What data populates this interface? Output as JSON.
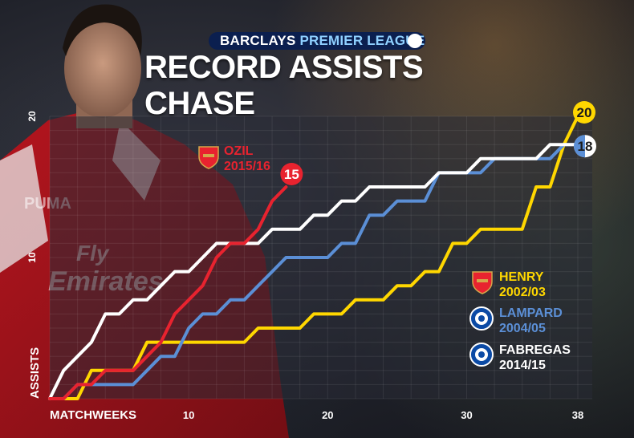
{
  "header": {
    "brand_part1": "BARCLAYS",
    "brand_part2": "PREMIER LEAGUE",
    "title": "RECORD ASSISTS CHASE"
  },
  "chart_data": {
    "type": "line",
    "title": "RECORD ASSISTS CHASE",
    "xlabel": "MATCHWEEKS",
    "ylabel": "ASSISTS",
    "xlim": [
      0,
      38
    ],
    "ylim": [
      0,
      20
    ],
    "x_ticks": [
      10,
      20,
      30,
      38
    ],
    "y_ticks": [
      10,
      20
    ],
    "grid": true,
    "series": [
      {
        "name": "OZIL",
        "season": "2015/16",
        "club": "arsenal",
        "color": "#e8232f",
        "end_label": "15",
        "points": [
          [
            0,
            0
          ],
          [
            1,
            0
          ],
          [
            2,
            1
          ],
          [
            3,
            1
          ],
          [
            4,
            2
          ],
          [
            5,
            2
          ],
          [
            6,
            2
          ],
          [
            7,
            3
          ],
          [
            8,
            4
          ],
          [
            9,
            6
          ],
          [
            10,
            7
          ],
          [
            11,
            8
          ],
          [
            12,
            10
          ],
          [
            13,
            11
          ],
          [
            14,
            11
          ],
          [
            15,
            12
          ],
          [
            16,
            14
          ],
          [
            17,
            15
          ]
        ]
      },
      {
        "name": "HENRY",
        "season": "2002/03",
        "club": "arsenal",
        "color": "#ffd700",
        "end_label": "20",
        "points": [
          [
            0,
            0
          ],
          [
            1,
            0
          ],
          [
            2,
            0
          ],
          [
            3,
            2
          ],
          [
            4,
            2
          ],
          [
            5,
            2
          ],
          [
            6,
            2
          ],
          [
            7,
            4
          ],
          [
            8,
            4
          ],
          [
            9,
            4
          ],
          [
            10,
            4
          ],
          [
            11,
            4
          ],
          [
            12,
            4
          ],
          [
            13,
            4
          ],
          [
            14,
            4
          ],
          [
            15,
            5
          ],
          [
            16,
            5
          ],
          [
            17,
            5
          ],
          [
            18,
            5
          ],
          [
            19,
            6
          ],
          [
            20,
            6
          ],
          [
            21,
            6
          ],
          [
            22,
            7
          ],
          [
            23,
            7
          ],
          [
            24,
            7
          ],
          [
            25,
            8
          ],
          [
            26,
            8
          ],
          [
            27,
            9
          ],
          [
            28,
            9
          ],
          [
            29,
            11
          ],
          [
            30,
            11
          ],
          [
            31,
            12
          ],
          [
            32,
            12
          ],
          [
            33,
            12
          ],
          [
            34,
            12
          ],
          [
            35,
            15
          ],
          [
            36,
            15
          ],
          [
            37,
            18
          ],
          [
            38,
            20
          ]
        ]
      },
      {
        "name": "LAMPARD",
        "season": "2004/05",
        "club": "chelsea",
        "color": "#5b8fd6",
        "end_label": "18",
        "points": [
          [
            0,
            0
          ],
          [
            1,
            0
          ],
          [
            2,
            1
          ],
          [
            3,
            1
          ],
          [
            4,
            1
          ],
          [
            5,
            1
          ],
          [
            6,
            1
          ],
          [
            7,
            2
          ],
          [
            8,
            3
          ],
          [
            9,
            3
          ],
          [
            10,
            5
          ],
          [
            11,
            6
          ],
          [
            12,
            6
          ],
          [
            13,
            7
          ],
          [
            14,
            7
          ],
          [
            15,
            8
          ],
          [
            16,
            9
          ],
          [
            17,
            10
          ],
          [
            18,
            10
          ],
          [
            19,
            10
          ],
          [
            20,
            10
          ],
          [
            21,
            11
          ],
          [
            22,
            11
          ],
          [
            23,
            13
          ],
          [
            24,
            13
          ],
          [
            25,
            14
          ],
          [
            26,
            14
          ],
          [
            27,
            14
          ],
          [
            28,
            16
          ],
          [
            29,
            16
          ],
          [
            30,
            16
          ],
          [
            31,
            16
          ],
          [
            32,
            17
          ],
          [
            33,
            17
          ],
          [
            34,
            17
          ],
          [
            35,
            17
          ],
          [
            36,
            17
          ],
          [
            37,
            18
          ],
          [
            38,
            18
          ]
        ]
      },
      {
        "name": "FABREGAS",
        "season": "2014/15",
        "club": "chelsea",
        "color": "#ffffff",
        "end_label": "18",
        "points": [
          [
            0,
            0
          ],
          [
            1,
            2
          ],
          [
            2,
            3
          ],
          [
            3,
            4
          ],
          [
            4,
            6
          ],
          [
            5,
            6
          ],
          [
            6,
            7
          ],
          [
            7,
            7
          ],
          [
            8,
            8
          ],
          [
            9,
            9
          ],
          [
            10,
            9
          ],
          [
            11,
            10
          ],
          [
            12,
            11
          ],
          [
            13,
            11
          ],
          [
            14,
            11
          ],
          [
            15,
            11
          ],
          [
            16,
            12
          ],
          [
            17,
            12
          ],
          [
            18,
            12
          ],
          [
            19,
            13
          ],
          [
            20,
            13
          ],
          [
            21,
            14
          ],
          [
            22,
            14
          ],
          [
            23,
            15
          ],
          [
            24,
            15
          ],
          [
            25,
            15
          ],
          [
            26,
            15
          ],
          [
            27,
            15
          ],
          [
            28,
            16
          ],
          [
            29,
            16
          ],
          [
            30,
            16
          ],
          [
            31,
            17
          ],
          [
            32,
            17
          ],
          [
            33,
            17
          ],
          [
            34,
            17
          ],
          [
            35,
            17
          ],
          [
            36,
            18
          ],
          [
            37,
            18
          ],
          [
            38,
            18
          ]
        ]
      }
    ]
  }
}
